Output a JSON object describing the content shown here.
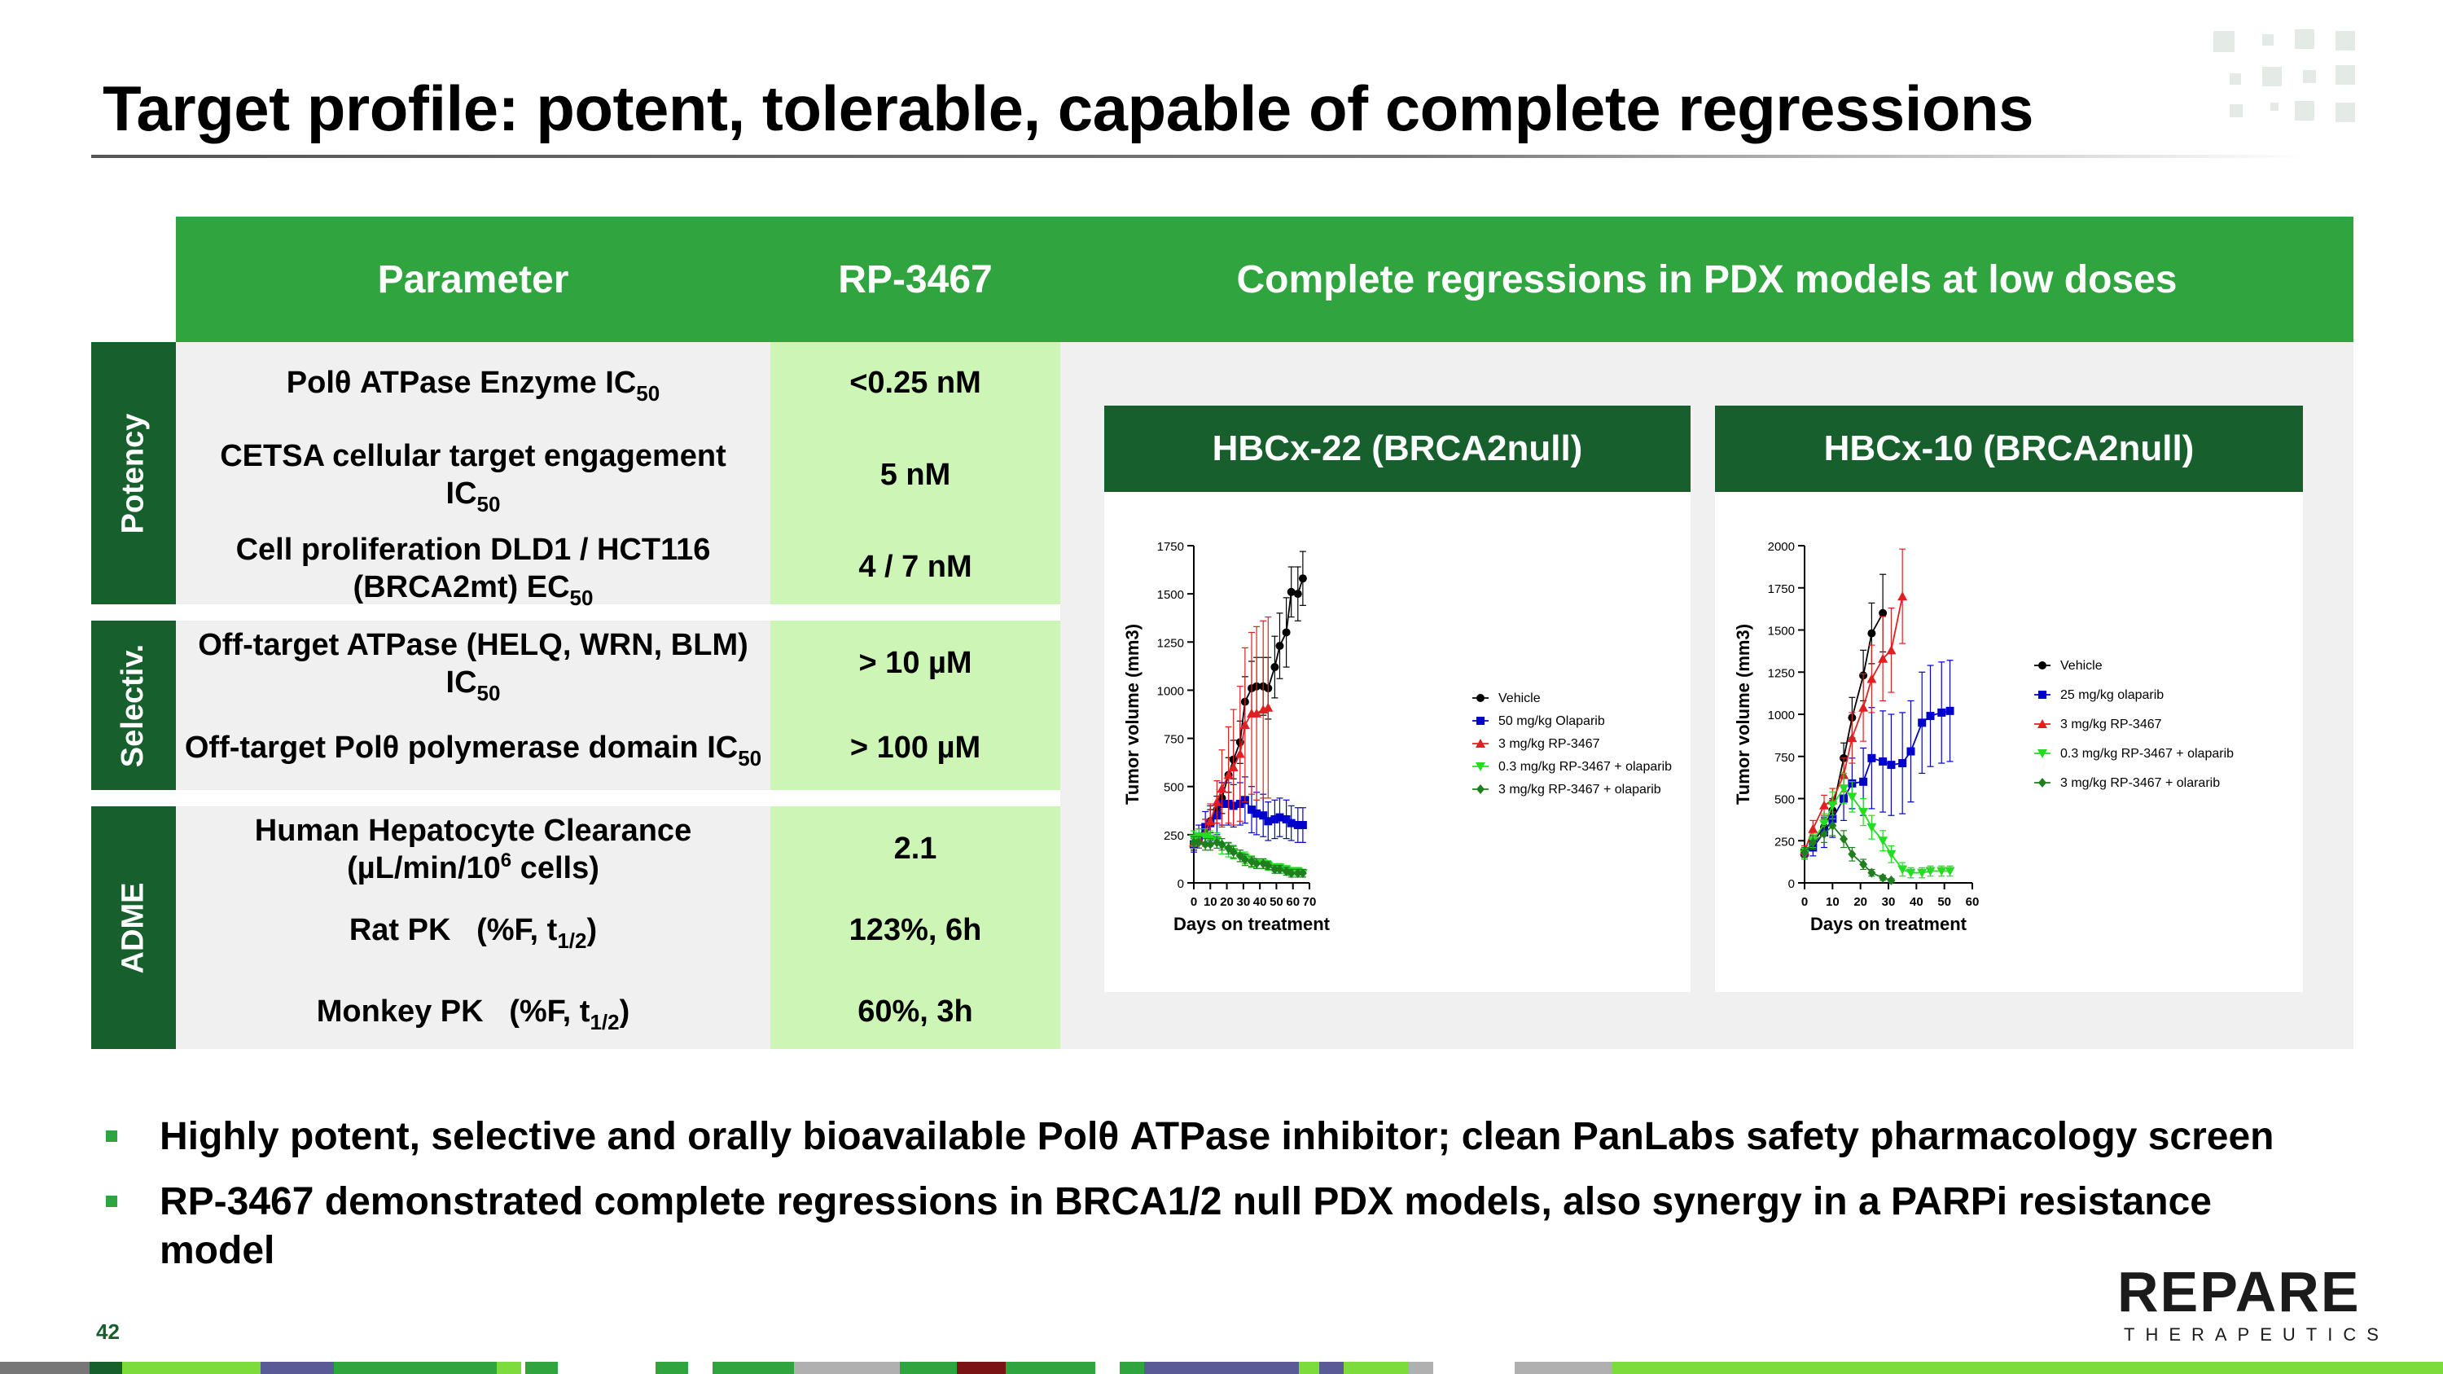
{
  "slide": {
    "title": "Target profile: potent, tolerable, capable of complete regressions",
    "page_number": "42"
  },
  "table": {
    "headers": {
      "parameter": "Parameter",
      "value": "RP-3467",
      "figure": "Complete regressions in PDX models at low doses"
    },
    "sections": {
      "potency": "Potency",
      "selectivity": "Selectiv.",
      "adme": "ADME"
    },
    "rows": [
      {
        "param_a": "Polθ ATPase Enzyme IC",
        "param_sub": "50",
        "value": "<0.25 nM"
      },
      {
        "param_a": "CETSA cellular target engagement",
        "param_b": "IC",
        "param_sub": "50",
        "value": "5 nM"
      },
      {
        "param_a": "Cell proliferation DLD1 / HCT116",
        "param_b": "(BRCA2mt)  EC",
        "param_sub": "50",
        "value": "4 / 7 nM"
      },
      {
        "param_a": "Off-target ATPase (HELQ, WRN, BLM)",
        "param_b": "IC",
        "param_sub": "50",
        "value": "> 10 µM"
      },
      {
        "param_a": "Off-target Polθ polymerase domain  IC",
        "param_sub": "50",
        "value": "> 100 µM"
      },
      {
        "param_a": "Human Hepatocyte Clearance",
        "param_b_pre": "(µL/min/10",
        "param_sup": "6",
        "param_b_post": " cells)",
        "value": "2.1"
      },
      {
        "param_a": "Rat PK   (%F, t",
        "param_sub": "1/2",
        "param_c": ")",
        "value": "123%, 6h"
      },
      {
        "param_a": "Monkey PK   (%F, t",
        "param_sub": "1/2",
        "param_c": ")",
        "value": "60%, 3h"
      }
    ]
  },
  "chart_data": [
    {
      "type": "line",
      "title": "HBCx-22 (BRCA2null)",
      "xlabel": "Days on treatment",
      "ylabel": "Tumor volume (mm3)",
      "xlim": [
        0,
        70
      ],
      "ylim": [
        0,
        1750
      ],
      "xticks": [
        0,
        10,
        20,
        30,
        40,
        50,
        60,
        70
      ],
      "yticks": [
        0,
        250,
        500,
        750,
        1000,
        1250,
        1500,
        1750
      ],
      "series": [
        {
          "name": "Vehicle",
          "color": "#000000",
          "marker": "circle",
          "x": [
            0,
            3,
            7,
            10,
            14,
            17,
            21,
            24,
            28,
            31,
            35,
            38,
            42,
            45,
            49,
            52,
            56,
            59,
            63,
            66
          ],
          "y": [
            200,
            240,
            280,
            320,
            380,
            440,
            560,
            640,
            730,
            940,
            1010,
            1020,
            1020,
            1010,
            1120,
            1230,
            1300,
            1510,
            1500,
            1580
          ],
          "err": [
            30,
            40,
            50,
            60,
            70,
            80,
            90,
            100,
            110,
            130,
            140,
            150,
            150,
            160,
            160,
            170,
            180,
            130,
            140,
            140
          ]
        },
        {
          "name": "50 mg/kg Olaparib",
          "color": "#0000cc",
          "marker": "square",
          "x": [
            0,
            3,
            7,
            10,
            14,
            17,
            21,
            24,
            28,
            31,
            35,
            38,
            42,
            45,
            49,
            52,
            56,
            59,
            63,
            66
          ],
          "y": [
            200,
            240,
            290,
            310,
            350,
            410,
            410,
            400,
            410,
            430,
            380,
            360,
            350,
            320,
            330,
            340,
            330,
            310,
            300,
            300
          ],
          "err": [
            40,
            60,
            80,
            90,
            100,
            110,
            110,
            110,
            110,
            120,
            120,
            110,
            110,
            100,
            100,
            100,
            100,
            90,
            90,
            90
          ]
        },
        {
          "name": "3 mg/kg RP-3467",
          "color": "#e02020",
          "marker": "triangle",
          "x": [
            0,
            3,
            7,
            10,
            14,
            17,
            21,
            24,
            28,
            31,
            35,
            38,
            42,
            45
          ],
          "y": [
            210,
            230,
            260,
            320,
            420,
            490,
            560,
            600,
            670,
            820,
            880,
            880,
            900,
            910
          ],
          "err": [
            30,
            50,
            70,
            90,
            110,
            200,
            250,
            300,
            350,
            400,
            420,
            450,
            460,
            470
          ]
        },
        {
          "name": "0.3 mg/kg RP-3467 + olaparib",
          "color": "#22dd22",
          "marker": "triangle-down",
          "x": [
            0,
            3,
            7,
            10,
            14,
            17,
            21,
            24,
            28,
            31,
            35,
            38,
            42,
            45,
            49,
            52,
            56,
            59,
            63,
            66
          ],
          "y": [
            230,
            240,
            240,
            230,
            220,
            190,
            170,
            160,
            140,
            130,
            110,
            100,
            100,
            90,
            80,
            80,
            70,
            60,
            60,
            50
          ],
          "err": [
            40,
            40,
            40,
            40,
            40,
            40,
            35,
            35,
            30,
            30,
            30,
            25,
            25,
            25,
            20,
            20,
            20,
            20,
            20,
            20
          ]
        },
        {
          "name": "3 mg/kg RP-3467  + olaparib",
          "color": "#1f7f1f",
          "marker": "diamond",
          "x": [
            0,
            3,
            7,
            10,
            14,
            17,
            21,
            24,
            28,
            31,
            35,
            38,
            42,
            45,
            49,
            52,
            56,
            59,
            63,
            66
          ],
          "y": [
            210,
            210,
            200,
            200,
            210,
            200,
            180,
            160,
            140,
            120,
            110,
            100,
            100,
            90,
            70,
            70,
            60,
            50,
            50,
            50
          ],
          "err": [
            30,
            30,
            30,
            30,
            30,
            30,
            30,
            30,
            30,
            30,
            25,
            25,
            25,
            20,
            20,
            20,
            20,
            20,
            20,
            20
          ]
        }
      ]
    },
    {
      "type": "line",
      "title": "HBCx-10 (BRCA2null)",
      "xlabel": "Days on treatment",
      "ylabel": "Tumor volume (mm3)",
      "xlim": [
        0,
        60
      ],
      "ylim": [
        0,
        2000
      ],
      "xticks": [
        0,
        10,
        20,
        30,
        40,
        50,
        60
      ],
      "yticks": [
        0,
        250,
        500,
        750,
        1000,
        1250,
        1500,
        1750,
        2000
      ],
      "series": [
        {
          "name": "Vehicle",
          "color": "#000000",
          "marker": "circle",
          "x": [
            0,
            3,
            7,
            10,
            14,
            17,
            21,
            24,
            28
          ],
          "y": [
            170,
            240,
            330,
            430,
            740,
            980,
            1230,
            1480,
            1600
          ],
          "err": [
            30,
            40,
            50,
            70,
            90,
            120,
            150,
            180,
            230
          ]
        },
        {
          "name": "25 mg/kg olaparib",
          "color": "#0000cc",
          "marker": "square",
          "x": [
            0,
            3,
            7,
            10,
            14,
            17,
            21,
            24,
            28,
            31,
            35,
            38,
            42,
            45,
            49,
            52
          ],
          "y": [
            180,
            210,
            300,
            380,
            500,
            590,
            600,
            740,
            720,
            700,
            710,
            780,
            950,
            990,
            1010,
            1020
          ],
          "err": [
            30,
            50,
            90,
            110,
            130,
            150,
            200,
            300,
            300,
            300,
            300,
            300,
            300,
            300,
            300,
            300
          ]
        },
        {
          "name": "3 mg/kg RP-3467",
          "color": "#e02020",
          "marker": "triangle",
          "x": [
            0,
            3,
            7,
            10,
            14,
            17,
            21,
            24,
            28,
            31,
            35
          ],
          "y": [
            190,
            320,
            460,
            490,
            640,
            860,
            1040,
            1210,
            1330,
            1380,
            1700
          ],
          "err": [
            30,
            50,
            60,
            70,
            100,
            150,
            200,
            200,
            250,
            250,
            280
          ]
        },
        {
          "name": "0.3 mg/kg RP-3467 + olaparib",
          "color": "#22dd22",
          "marker": "triangle-down",
          "x": [
            0,
            3,
            7,
            10,
            14,
            17,
            21,
            24,
            28,
            31,
            35,
            38,
            42,
            45,
            49,
            52
          ],
          "y": [
            170,
            250,
            350,
            460,
            560,
            510,
            420,
            330,
            250,
            170,
            80,
            60,
            60,
            70,
            70,
            70
          ],
          "err": [
            30,
            40,
            60,
            80,
            90,
            90,
            80,
            70,
            60,
            50,
            40,
            30,
            30,
            30,
            30,
            30
          ]
        },
        {
          "name": "3 mg/kg RP-3467 + olararib",
          "color": "#1f7f1f",
          "marker": "diamond",
          "x": [
            0,
            3,
            7,
            10,
            14,
            17,
            21,
            24,
            28,
            31
          ],
          "y": [
            180,
            240,
            290,
            340,
            260,
            170,
            110,
            60,
            30,
            15
          ],
          "err": [
            30,
            40,
            50,
            60,
            50,
            40,
            30,
            20,
            15,
            10
          ]
        }
      ]
    }
  ],
  "bullets": [
    "Highly potent, selective and orally bioavailable Polθ ATPase inhibitor; clean PanLabs safety pharmacology screen",
    "RP-3467 demonstrated complete regressions in BRCA1/2 null PDX models, also synergy in a PARPi resistance",
    "model"
  ],
  "logo": {
    "main": "REPARE",
    "sub": "THERAPEUTICS"
  },
  "colors": {
    "brand_green": "#2fa43f",
    "dark_green": "#17602e",
    "light_green": "#cdf5b6",
    "panel_gray": "#f0f0f0"
  }
}
